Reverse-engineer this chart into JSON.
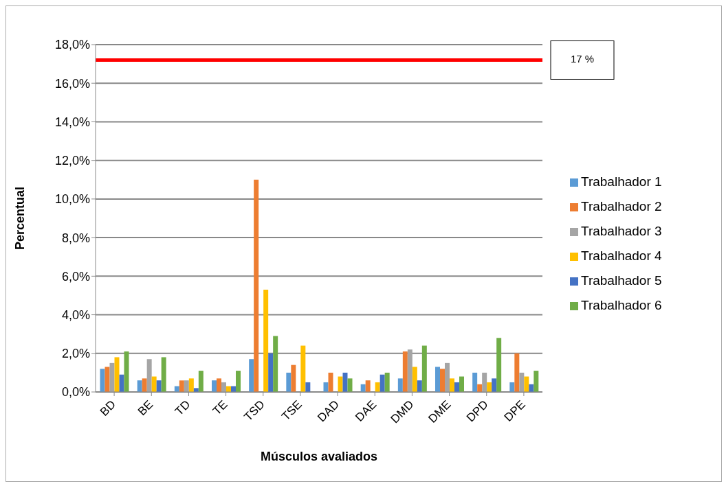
{
  "chart_data": {
    "type": "bar",
    "xlabel": "Músculos avaliados",
    "ylabel": "Percentual",
    "categories": [
      "BD",
      "BE",
      "TD",
      "TE",
      "TSD",
      "TSE",
      "DAD",
      "DAE",
      "DMD",
      "DME",
      "DPD",
      "DPE"
    ],
    "series": [
      {
        "name": "Trabalhador 1",
        "color": "#5b9bd5",
        "values": [
          1.2,
          0.6,
          0.3,
          0.6,
          1.7,
          1.0,
          0.5,
          0.4,
          0.7,
          1.3,
          1.0,
          0.5
        ]
      },
      {
        "name": "Trabalhador 2",
        "color": "#ed7d31",
        "values": [
          1.3,
          0.7,
          0.6,
          0.7,
          11.0,
          1.4,
          1.0,
          0.6,
          2.1,
          1.2,
          0.4,
          2.0
        ]
      },
      {
        "name": "Trabalhador 3",
        "color": "#a5a5a5",
        "values": [
          1.5,
          1.7,
          0.6,
          0.5,
          0,
          0,
          0,
          0,
          2.2,
          1.5,
          1.0,
          1.0
        ]
      },
      {
        "name": "Trabalhador 4",
        "color": "#ffc000",
        "values": [
          1.8,
          0.8,
          0.7,
          0.3,
          5.3,
          2.4,
          0.8,
          0.5,
          1.3,
          0.7,
          0.5,
          0.8
        ]
      },
      {
        "name": "Trabalhador 5",
        "color": "#4472c4",
        "values": [
          0.9,
          0.6,
          0.2,
          0.3,
          2.0,
          0.5,
          1.0,
          0.9,
          0.6,
          0.5,
          0.7,
          0.4
        ]
      },
      {
        "name": "Trabalhador 6",
        "color": "#70ad47",
        "values": [
          2.1,
          1.8,
          1.1,
          1.1,
          2.9,
          0,
          0.7,
          1.0,
          2.4,
          0.8,
          2.8,
          1.1
        ]
      }
    ],
    "ylim": [
      0,
      18
    ],
    "yticks": [
      {
        "value": 0,
        "label": "0,0%"
      },
      {
        "value": 2,
        "label": "2,0%"
      },
      {
        "value": 4,
        "label": "4,0%"
      },
      {
        "value": 6,
        "label": "6,0%"
      },
      {
        "value": 8,
        "label": "8,0%"
      },
      {
        "value": 10,
        "label": "10,0%"
      },
      {
        "value": 12,
        "label": "12,0%"
      },
      {
        "value": 14,
        "label": "14,0%"
      },
      {
        "value": 16,
        "label": "16,0%"
      },
      {
        "value": 18,
        "label": "18,0%"
      }
    ],
    "ref_lines": [
      {
        "axis": "y",
        "value": 17.2,
        "label": "17 %",
        "color": "#ff0000"
      }
    ],
    "grid": "y",
    "legend": "right"
  }
}
